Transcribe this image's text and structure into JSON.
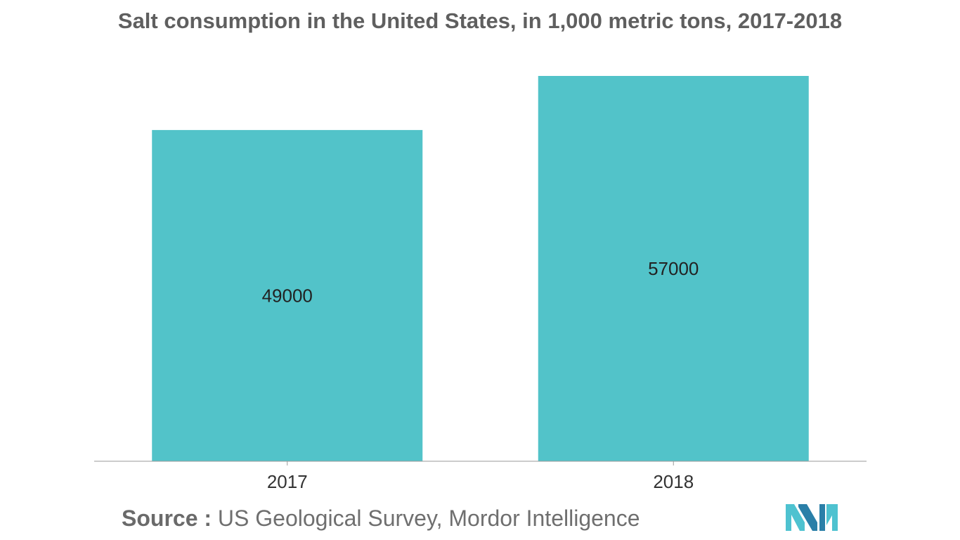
{
  "title": "Salt consumption in the United States, in 1,000 metric tons, 2017-2018",
  "source": {
    "label": "Source :",
    "text": "US Geological Survey, Mordor Intelligence"
  },
  "colors": {
    "bar": "#52c3c9",
    "axis": "#9a9a9a",
    "text": "#222222",
    "logo_dark": "#2a7fa8",
    "logo_light": "#4ec2d0"
  },
  "logo": {
    "icon": "mordor-intelligence-logo"
  },
  "chart_data": {
    "type": "bar",
    "title": "Salt consumption in the United States, in 1,000 metric tons, 2017-2018",
    "categories": [
      "2017",
      "2018"
    ],
    "values": [
      49000,
      57000
    ],
    "data_labels": [
      "49000",
      "57000"
    ],
    "ylim": [
      0,
      57000
    ],
    "grid": false,
    "legend": "none"
  }
}
